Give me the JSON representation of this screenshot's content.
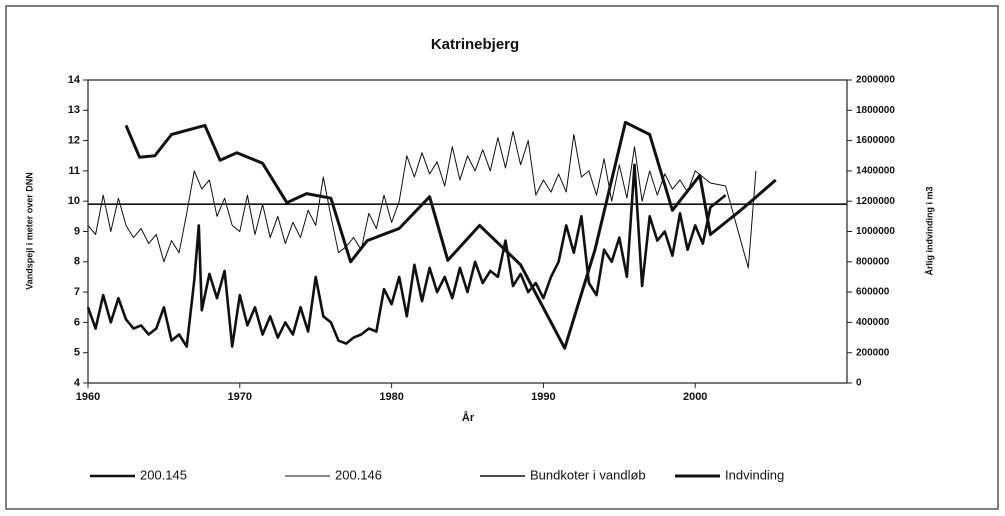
{
  "chart_data": {
    "type": "line",
    "title": "Katrinebjerg",
    "xlabel": "År",
    "ylabel": "Vandspejl i meter over DNN",
    "y2label": "Årlig indvinding i m3",
    "xlim": [
      1960,
      2010
    ],
    "xticks": [
      1960,
      1970,
      1980,
      1990,
      2000
    ],
    "ylim": [
      4,
      14
    ],
    "yticks": [
      4,
      5,
      6,
      7,
      8,
      9,
      10,
      11,
      12,
      13,
      14
    ],
    "y2lim": [
      0,
      2000000
    ],
    "y2ticks": [
      0,
      200000,
      400000,
      600000,
      800000,
      1000000,
      1200000,
      1400000,
      1600000,
      1800000,
      2000000
    ],
    "legend": "bottom",
    "series": [
      {
        "name": "200.145",
        "color": "#111111",
        "line_width": 2.6,
        "x": [
          1960,
          1960.5,
          1961,
          1961.5,
          1962,
          1962.5,
          1963,
          1963.5,
          1964,
          1964.5,
          1965,
          1965.5,
          1966,
          1966.5,
          1967,
          1967.3,
          1967.5,
          1968,
          1968.5,
          1969,
          1969.5,
          1970,
          1970.5,
          1971,
          1971.5,
          1972,
          1972.5,
          1973,
          1973.5,
          1974,
          1974.5,
          1975,
          1975.5,
          1976,
          1976.5,
          1977,
          1977.5,
          1978,
          1978.5,
          1979,
          1979.5,
          1980,
          1980.5,
          1981,
          1981.5,
          1982,
          1982.5,
          1983,
          1983.5,
          1984,
          1984.5,
          1985,
          1985.5,
          1986,
          1986.5,
          1987,
          1987.5,
          1988,
          1988.5,
          1989,
          1989.5,
          1990,
          1990.5,
          1991,
          1991.5,
          1992,
          1992.5,
          1993,
          1993.5,
          1994,
          1994.5,
          1995,
          1995.5,
          1996,
          1996.5,
          1997,
          1997.5,
          1998,
          1998.5,
          1999,
          1999.5,
          2000,
          2000.5,
          2001,
          2002
        ],
        "values": [
          6.5,
          5.8,
          6.9,
          6.0,
          6.8,
          6.1,
          5.8,
          5.9,
          5.6,
          5.8,
          6.5,
          5.4,
          5.6,
          5.2,
          7.4,
          9.2,
          6.4,
          7.6,
          6.8,
          7.7,
          5.2,
          6.9,
          5.9,
          6.5,
          5.6,
          6.2,
          5.5,
          6.0,
          5.6,
          6.5,
          5.7,
          7.5,
          6.2,
          6.0,
          5.4,
          5.3,
          5.5,
          5.6,
          5.8,
          5.7,
          7.1,
          6.6,
          7.5,
          6.2,
          7.9,
          6.7,
          7.8,
          7.0,
          7.5,
          6.8,
          7.8,
          7.0,
          8.0,
          7.3,
          7.7,
          7.5,
          8.7,
          7.2,
          7.6,
          7.0,
          7.3,
          6.8,
          7.5,
          8.0,
          9.2,
          8.3,
          9.5,
          7.3,
          6.9,
          8.4,
          8.0,
          8.8,
          7.5,
          11.2,
          7.2,
          9.5,
          8.7,
          9.0,
          8.2,
          9.6,
          8.4,
          9.2,
          8.6,
          9.8,
          10.2
        ]
      },
      {
        "name": "200.146",
        "color": "#111111",
        "line_width": 1,
        "x": [
          1960,
          1960.5,
          1961,
          1961.5,
          1962,
          1962.5,
          1963,
          1963.5,
          1964,
          1964.5,
          1965,
          1965.5,
          1966,
          1966.5,
          1967,
          1967.5,
          1968,
          1968.5,
          1969,
          1969.5,
          1970,
          1970.5,
          1971,
          1971.5,
          1972,
          1972.5,
          1973,
          1973.5,
          1974,
          1974.5,
          1975,
          1975.5,
          1976,
          1976.5,
          1977,
          1977.5,
          1978,
          1978.5,
          1979,
          1979.5,
          1980,
          1980.5,
          1981,
          1981.5,
          1982,
          1982.5,
          1983,
          1983.5,
          1984,
          1984.5,
          1985,
          1985.5,
          1986,
          1986.5,
          1987,
          1987.5,
          1988,
          1988.5,
          1989,
          1989.5,
          1990,
          1990.5,
          1991,
          1991.5,
          1992,
          1992.5,
          1993,
          1993.5,
          1994,
          1994.5,
          1995,
          1995.5,
          1996,
          1996.5,
          1997,
          1997.5,
          1998,
          1998.5,
          1999,
          1999.5,
          2000,
          2001,
          2002,
          2003.5,
          2004
        ],
        "values": [
          9.2,
          8.9,
          10.2,
          9.0,
          10.1,
          9.2,
          8.8,
          9.1,
          8.6,
          8.9,
          8.0,
          8.7,
          8.3,
          9.6,
          11.0,
          10.4,
          10.7,
          9.5,
          10.1,
          9.2,
          9.0,
          10.2,
          8.9,
          9.9,
          8.8,
          9.5,
          8.6,
          9.3,
          8.8,
          9.7,
          9.2,
          10.8,
          9.5,
          8.3,
          8.5,
          8.8,
          8.4,
          9.6,
          9.1,
          10.2,
          9.3,
          10.0,
          11.5,
          10.8,
          11.6,
          10.9,
          11.3,
          10.5,
          11.8,
          10.7,
          11.5,
          11.0,
          11.7,
          11.0,
          12.1,
          11.1,
          12.3,
          11.2,
          12.0,
          10.2,
          10.7,
          10.3,
          10.9,
          10.3,
          12.2,
          10.8,
          11.0,
          10.2,
          11.4,
          10.0,
          11.2,
          10.1,
          11.8,
          10.0,
          11.0,
          10.2,
          10.9,
          10.4,
          10.7,
          10.3,
          11.0,
          10.6,
          10.5,
          7.8,
          11.0
        ]
      },
      {
        "name": "Bundkoter i vandløb",
        "color": "#111111",
        "line_width": 1.6,
        "x": [
          1960,
          2010
        ],
        "values": [
          9.9,
          9.9
        ]
      },
      {
        "name": "Indvinding",
        "color": "#111111",
        "line_width": 3,
        "axis": "y2",
        "x": [
          1962.5,
          1963.4,
          1964.4,
          1965.5,
          1967.7,
          1968.7,
          1969.8,
          1971.5,
          1973.1,
          1974.4,
          1976,
          1977.3,
          1978.4,
          1980.5,
          1982.5,
          1983.7,
          1985.8,
          1988.5,
          1991.4,
          1993.4,
          1995.4,
          1997,
          1998.5,
          2000.3,
          2001,
          2003,
          2005.3
        ],
        "values": [
          1700000,
          1490000,
          1500000,
          1640000,
          1700000,
          1470000,
          1520000,
          1450000,
          1190000,
          1250000,
          1220000,
          800000,
          940000,
          1020000,
          1230000,
          810000,
          1040000,
          780000,
          230000,
          880000,
          1720000,
          1640000,
          1140000,
          1370000,
          980000,
          1140000,
          1340000
        ]
      }
    ]
  }
}
